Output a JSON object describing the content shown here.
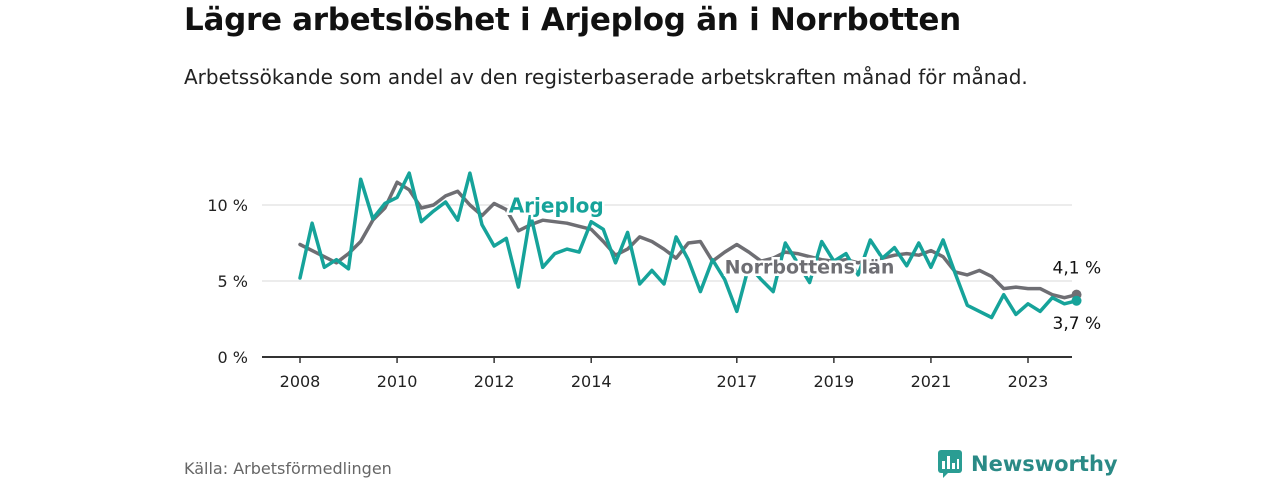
{
  "title": "Lägre arbetslöshet i Arjeplog än i Norrbotten",
  "subtitle": "Arbetssökande som andel av den registerbaserade arbetskraften månad för månad.",
  "source": "Källa: Arbetsförmedlingen",
  "brand": {
    "name": "Newsworthy",
    "icon": "newsworthy-logo-icon",
    "color": "#2a9d93"
  },
  "colors": {
    "arjeplog": "#16a39a",
    "norrbotten": "#6e6e73",
    "grid": "#d8d8d8",
    "axis": "#333333"
  },
  "chart_data": {
    "type": "line",
    "title": "Lägre arbetslöshet i Arjeplog än i Norrbotten",
    "xlabel": "",
    "ylabel": "",
    "xlim": [
      2008,
      2024.25
    ],
    "ylim": [
      0,
      12.5
    ],
    "y_ticks": [
      0,
      5,
      10
    ],
    "y_tick_labels": [
      "0 %",
      "5 %",
      "10 %"
    ],
    "x_ticks": [
      2008,
      2010,
      2012,
      2014,
      2017,
      2019,
      2021,
      2023
    ],
    "x_tick_labels": [
      "2008",
      "2010",
      "2012",
      "2014",
      "2017",
      "2019",
      "2021",
      "2023"
    ],
    "grid": true,
    "series": [
      {
        "name": "Norrbottens län",
        "color": "#6e6e73",
        "end_label": "4,1 %",
        "x": [
          2008,
          2008.25,
          2008.5,
          2008.75,
          2009,
          2009.25,
          2009.5,
          2009.75,
          2010,
          2010.25,
          2010.5,
          2010.75,
          2011,
          2011.25,
          2011.5,
          2011.75,
          2012,
          2012.25,
          2012.5,
          2012.75,
          2013,
          2013.25,
          2013.5,
          2013.75,
          2014,
          2014.25,
          2014.5,
          2014.75,
          2015,
          2015.25,
          2015.5,
          2015.75,
          2016,
          2016.25,
          2016.5,
          2016.75,
          2017,
          2017.25,
          2017.5,
          2017.75,
          2018,
          2018.25,
          2018.5,
          2018.75,
          2019,
          2019.25,
          2019.5,
          2019.75,
          2020,
          2020.25,
          2020.5,
          2020.75,
          2021,
          2021.25,
          2021.5,
          2021.75,
          2022,
          2022.25,
          2022.5,
          2022.75,
          2023,
          2023.25,
          2023.5,
          2023.75,
          2024
        ],
        "values": [
          7.4,
          7.0,
          6.6,
          6.2,
          6.8,
          7.6,
          9.0,
          9.8,
          11.5,
          11.0,
          9.8,
          10.0,
          10.6,
          10.9,
          10.0,
          9.3,
          10.1,
          9.7,
          8.3,
          8.7,
          9.0,
          8.9,
          8.8,
          8.6,
          8.4,
          7.6,
          6.7,
          7.1,
          7.9,
          7.6,
          7.1,
          6.5,
          7.5,
          7.6,
          6.3,
          6.9,
          7.4,
          6.9,
          6.3,
          6.5,
          6.9,
          6.8,
          6.6,
          6.4,
          6.3,
          6.4,
          6.2,
          6.4,
          6.5,
          6.7,
          6.8,
          6.7,
          7.0,
          6.6,
          5.6,
          5.4,
          5.7,
          5.3,
          4.5,
          4.6,
          4.5,
          4.5,
          4.1,
          3.9,
          4.1
        ]
      },
      {
        "name": "Arjeplog",
        "color": "#16a39a",
        "end_label": "3,7 %",
        "x": [
          2008,
          2008.25,
          2008.5,
          2008.75,
          2009,
          2009.25,
          2009.5,
          2009.75,
          2010,
          2010.25,
          2010.5,
          2010.75,
          2011,
          2011.25,
          2011.5,
          2011.75,
          2012,
          2012.25,
          2012.5,
          2012.75,
          2013,
          2013.25,
          2013.5,
          2013.75,
          2014,
          2014.25,
          2014.5,
          2014.75,
          2015,
          2015.25,
          2015.5,
          2015.75,
          2016,
          2016.25,
          2016.5,
          2016.75,
          2017,
          2017.25,
          2017.5,
          2017.75,
          2018,
          2018.25,
          2018.5,
          2018.75,
          2019,
          2019.25,
          2019.5,
          2019.75,
          2020,
          2020.25,
          2020.5,
          2020.75,
          2021,
          2021.25,
          2021.5,
          2021.75,
          2022,
          2022.25,
          2022.5,
          2022.75,
          2023,
          2023.25,
          2023.5,
          2023.75,
          2024
        ],
        "values": [
          5.2,
          8.8,
          5.9,
          6.4,
          5.8,
          11.7,
          9.1,
          10.1,
          10.5,
          12.1,
          8.9,
          9.6,
          10.2,
          9.0,
          12.1,
          8.7,
          7.3,
          7.8,
          4.6,
          9.4,
          5.9,
          6.8,
          7.1,
          6.9,
          8.9,
          8.4,
          6.2,
          8.2,
          4.8,
          5.7,
          4.8,
          7.9,
          6.4,
          4.3,
          6.4,
          5.1,
          3.0,
          6.0,
          5.1,
          4.3,
          7.5,
          6.2,
          4.9,
          7.6,
          6.3,
          6.8,
          5.4,
          7.7,
          6.5,
          7.2,
          6.0,
          7.5,
          5.9,
          7.7,
          5.5,
          3.4,
          3.0,
          2.6,
          4.1,
          2.8,
          3.5,
          3.0,
          3.9,
          3.5,
          3.7
        ]
      }
    ],
    "annotations": [
      "Arjeplog",
      "Norrbottens län"
    ]
  }
}
